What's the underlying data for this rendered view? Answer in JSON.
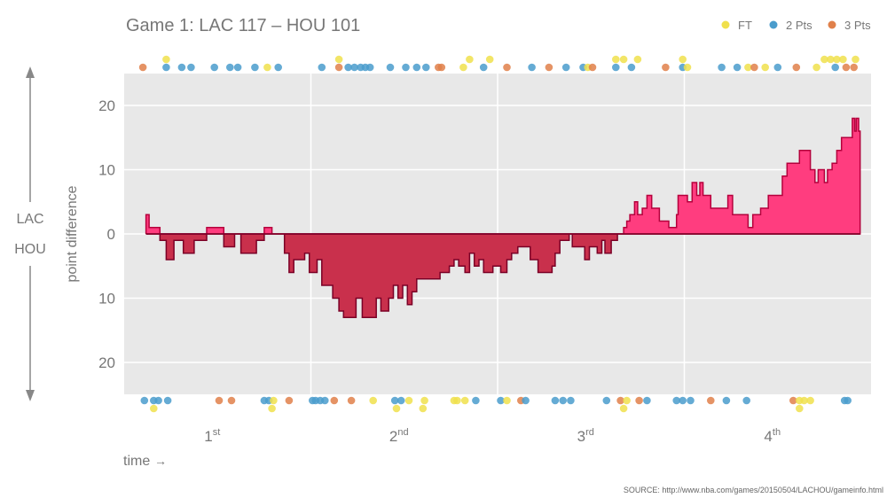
{
  "title": "Game 1: LAC 117  –  HOU 101",
  "source": "SOURCE: http://www.nba.com/games/20150504/LACHOU/gameinfo.html",
  "colors": {
    "lac_fill": "#ff3d7f",
    "lac_line": "#b5003c",
    "hou_fill": "#c9304c",
    "hou_line": "#7a0026",
    "ft": "#f0e04c",
    "two": "#4a9ccc",
    "three": "#e0804a",
    "plot_bg": "#e8e8e8",
    "text": "#777777"
  },
  "chart_data": {
    "type": "area",
    "title": "Game 1: LAC 117  –  HOU 101",
    "xlabel": "time",
    "ylabel": "point difference",
    "xlim": [
      0,
      48
    ],
    "ylim": [
      -25,
      25
    ],
    "yticks": [
      20,
      10,
      0,
      10,
      20
    ],
    "ytick_values": [
      20,
      10,
      0,
      -10,
      -20
    ],
    "team_labels": {
      "top": "LAC",
      "bottom": "HOU"
    },
    "quarters": [
      {
        "num": "1",
        "sup": "st",
        "center": 6
      },
      {
        "num": "2",
        "sup": "nd",
        "center": 18
      },
      {
        "num": "3",
        "sup": "rd",
        "center": 30
      },
      {
        "num": "4",
        "sup": "th",
        "center": 42
      }
    ],
    "legend": [
      {
        "key": "ft",
        "label": "FT"
      },
      {
        "key": "two",
        "label": "2 Pts"
      },
      {
        "key": "three",
        "label": "3 Pts"
      }
    ],
    "score_diff": [
      [
        1.4,
        0
      ],
      [
        1.4,
        3
      ],
      [
        1.6,
        3
      ],
      [
        1.6,
        1
      ],
      [
        2.3,
        1
      ],
      [
        2.3,
        -1
      ],
      [
        2.7,
        -1
      ],
      [
        2.7,
        -4
      ],
      [
        3.2,
        -4
      ],
      [
        3.2,
        -1
      ],
      [
        3.8,
        -1
      ],
      [
        3.8,
        -3
      ],
      [
        4.5,
        -3
      ],
      [
        4.5,
        -1
      ],
      [
        5.3,
        -1
      ],
      [
        5.3,
        1
      ],
      [
        6.4,
        1
      ],
      [
        6.4,
        -2
      ],
      [
        7.1,
        -2
      ],
      [
        7.1,
        0
      ],
      [
        7.5,
        0
      ],
      [
        7.5,
        -3
      ],
      [
        8.5,
        -3
      ],
      [
        8.5,
        -1
      ],
      [
        9,
        -1
      ],
      [
        9,
        1
      ],
      [
        9.5,
        1
      ],
      [
        9.5,
        0
      ],
      [
        10.3,
        0
      ],
      [
        10.3,
        -3
      ],
      [
        10.6,
        -3
      ],
      [
        10.6,
        -6
      ],
      [
        10.9,
        -6
      ],
      [
        10.9,
        -4
      ],
      [
        11.6,
        -4
      ],
      [
        11.6,
        -3
      ],
      [
        11.9,
        -3
      ],
      [
        11.9,
        -6
      ],
      [
        12.4,
        -6
      ],
      [
        12.4,
        -4
      ],
      [
        12.7,
        -4
      ],
      [
        12.7,
        -8
      ],
      [
        13.4,
        -8
      ],
      [
        13.4,
        -10
      ],
      [
        13.8,
        -10
      ],
      [
        13.8,
        -12
      ],
      [
        14.1,
        -12
      ],
      [
        14.1,
        -13
      ],
      [
        14.9,
        -13
      ],
      [
        14.9,
        -10
      ],
      [
        15.3,
        -10
      ],
      [
        15.3,
        -13
      ],
      [
        16.2,
        -13
      ],
      [
        16.2,
        -10
      ],
      [
        16.5,
        -10
      ],
      [
        16.5,
        -12
      ],
      [
        17,
        -12
      ],
      [
        17,
        -10
      ],
      [
        17.3,
        -10
      ],
      [
        17.3,
        -8
      ],
      [
        17.6,
        -8
      ],
      [
        17.6,
        -10
      ],
      [
        17.9,
        -10
      ],
      [
        17.9,
        -8
      ],
      [
        18.2,
        -8
      ],
      [
        18.2,
        -11
      ],
      [
        18.5,
        -11
      ],
      [
        18.5,
        -9
      ],
      [
        18.8,
        -9
      ],
      [
        18.8,
        -7
      ],
      [
        20.3,
        -7
      ],
      [
        20.3,
        -6
      ],
      [
        20.9,
        -6
      ],
      [
        20.9,
        -5
      ],
      [
        21.2,
        -5
      ],
      [
        21.2,
        -4
      ],
      [
        21.5,
        -4
      ],
      [
        21.5,
        -5
      ],
      [
        21.9,
        -5
      ],
      [
        21.9,
        -6
      ],
      [
        22.2,
        -6
      ],
      [
        22.2,
        -3
      ],
      [
        22.5,
        -3
      ],
      [
        22.5,
        -5
      ],
      [
        22.8,
        -5
      ],
      [
        22.8,
        -4
      ],
      [
        23.1,
        -4
      ],
      [
        23.1,
        -6
      ],
      [
        23.7,
        -6
      ],
      [
        23.7,
        -5
      ],
      [
        24.2,
        -5
      ],
      [
        24.2,
        -6
      ],
      [
        24.6,
        -6
      ],
      [
        24.6,
        -4
      ],
      [
        24.9,
        -4
      ],
      [
        24.9,
        -3
      ],
      [
        25.3,
        -3
      ],
      [
        25.3,
        -2
      ],
      [
        26.1,
        -2
      ],
      [
        26.1,
        -4
      ],
      [
        26.6,
        -4
      ],
      [
        26.6,
        -6
      ],
      [
        27.5,
        -6
      ],
      [
        27.5,
        -5
      ],
      [
        27.7,
        -5
      ],
      [
        27.7,
        -3
      ],
      [
        28,
        -3
      ],
      [
        28,
        -1
      ],
      [
        28.6,
        -1
      ],
      [
        28.6,
        0
      ],
      [
        28.8,
        0
      ],
      [
        28.8,
        -2
      ],
      [
        29.6,
        -2
      ],
      [
        29.6,
        -4
      ],
      [
        29.9,
        -4
      ],
      [
        29.9,
        -2
      ],
      [
        30.4,
        -2
      ],
      [
        30.4,
        -3
      ],
      [
        30.7,
        -3
      ],
      [
        30.7,
        -1
      ],
      [
        30.9,
        -1
      ],
      [
        30.9,
        -3
      ],
      [
        31.3,
        -3
      ],
      [
        31.3,
        -1
      ],
      [
        31.7,
        -1
      ],
      [
        31.7,
        0
      ],
      [
        32.1,
        0
      ],
      [
        32.1,
        1
      ],
      [
        32.3,
        1
      ],
      [
        32.3,
        2
      ],
      [
        32.5,
        2
      ],
      [
        32.5,
        3
      ],
      [
        32.8,
        3
      ],
      [
        32.8,
        5
      ],
      [
        33,
        5
      ],
      [
        33,
        3
      ],
      [
        33.3,
        3
      ],
      [
        33.3,
        4
      ],
      [
        33.6,
        4
      ],
      [
        33.6,
        6
      ],
      [
        33.9,
        6
      ],
      [
        33.9,
        4
      ],
      [
        34.4,
        4
      ],
      [
        34.4,
        2
      ],
      [
        35,
        2
      ],
      [
        35,
        1
      ],
      [
        35.5,
        1
      ],
      [
        35.5,
        3
      ],
      [
        35.6,
        3
      ],
      [
        35.6,
        6
      ],
      [
        36.2,
        6
      ],
      [
        36.2,
        5
      ],
      [
        36.5,
        5
      ],
      [
        36.5,
        8
      ],
      [
        36.8,
        8
      ],
      [
        36.8,
        6
      ],
      [
        37,
        6
      ],
      [
        37,
        8
      ],
      [
        37.2,
        8
      ],
      [
        37.2,
        6
      ],
      [
        37.7,
        6
      ],
      [
        37.7,
        4
      ],
      [
        38.8,
        4
      ],
      [
        38.8,
        6
      ],
      [
        39.1,
        6
      ],
      [
        39.1,
        3
      ],
      [
        40.1,
        3
      ],
      [
        40.1,
        1
      ],
      [
        40.4,
        1
      ],
      [
        40.4,
        3
      ],
      [
        40.9,
        3
      ],
      [
        40.9,
        4
      ],
      [
        41.4,
        4
      ],
      [
        41.4,
        6
      ],
      [
        42.3,
        6
      ],
      [
        42.3,
        9
      ],
      [
        42.6,
        9
      ],
      [
        42.6,
        11
      ],
      [
        43.4,
        11
      ],
      [
        43.4,
        13
      ],
      [
        44.1,
        13
      ],
      [
        44.1,
        10
      ],
      [
        44.4,
        10
      ],
      [
        44.4,
        8
      ],
      [
        44.6,
        8
      ],
      [
        44.6,
        10
      ],
      [
        45,
        10
      ],
      [
        45,
        8
      ],
      [
        45.2,
        8
      ],
      [
        45.2,
        10
      ],
      [
        45.5,
        10
      ],
      [
        45.5,
        11
      ],
      [
        45.8,
        11
      ],
      [
        45.8,
        13
      ],
      [
        46.1,
        13
      ],
      [
        46.1,
        15
      ],
      [
        46.8,
        15
      ],
      [
        46.8,
        18
      ],
      [
        46.95,
        18
      ],
      [
        46.95,
        16
      ],
      [
        47.05,
        16
      ],
      [
        47.05,
        18
      ],
      [
        47.2,
        18
      ],
      [
        47.2,
        16
      ],
      [
        47.3,
        16
      ]
    ],
    "top_shots": [
      [
        1.2,
        "three"
      ],
      [
        2.7,
        "two"
      ],
      [
        3.7,
        "two"
      ],
      [
        4.3,
        "two"
      ],
      [
        5.8,
        "two"
      ],
      [
        6.8,
        "two"
      ],
      [
        7.3,
        "two"
      ],
      [
        8.4,
        "two"
      ],
      [
        9.2,
        "ft"
      ],
      [
        9.9,
        "two"
      ],
      [
        12.7,
        "two"
      ],
      [
        13.8,
        "three"
      ],
      [
        14.4,
        "two"
      ],
      [
        14.8,
        "two"
      ],
      [
        15.2,
        "two"
      ],
      [
        15.5,
        "two"
      ],
      [
        15.8,
        "two"
      ],
      [
        17.1,
        "two"
      ],
      [
        18.1,
        "two"
      ],
      [
        18.8,
        "two"
      ],
      [
        19.4,
        "two"
      ],
      [
        20.2,
        "three"
      ],
      [
        20.4,
        "three"
      ],
      [
        21.8,
        "ft"
      ],
      [
        23.1,
        "two"
      ],
      [
        24.6,
        "three"
      ],
      [
        26.2,
        "two"
      ],
      [
        27.3,
        "three"
      ],
      [
        28.4,
        "two"
      ],
      [
        29.5,
        "two"
      ],
      [
        29.8,
        "ft"
      ],
      [
        30.1,
        "three"
      ],
      [
        31.6,
        "two"
      ],
      [
        32.6,
        "two"
      ],
      [
        34.8,
        "three"
      ],
      [
        35.9,
        "two"
      ],
      [
        36.2,
        "ft"
      ],
      [
        38.4,
        "two"
      ],
      [
        39.4,
        "two"
      ],
      [
        40.1,
        "ft"
      ],
      [
        40.5,
        "three"
      ],
      [
        41.2,
        "ft"
      ],
      [
        42,
        "two"
      ],
      [
        43.2,
        "three"
      ],
      [
        44.5,
        "ft"
      ],
      [
        45.7,
        "two"
      ],
      [
        46.4,
        "three"
      ],
      [
        46.9,
        "three"
      ]
    ],
    "top_ft_extra": [
      [
        2.7
      ],
      [
        13.8
      ],
      [
        22.2
      ],
      [
        23.5
      ],
      [
        31.6
      ],
      [
        32.1
      ],
      [
        33
      ],
      [
        35.9
      ],
      [
        45
      ],
      [
        45.4
      ],
      [
        45.8
      ],
      [
        46.2
      ],
      [
        47
      ]
    ],
    "bottom_shots": [
      [
        1.3,
        "two"
      ],
      [
        1.9,
        "two"
      ],
      [
        2.2,
        "two"
      ],
      [
        2.8,
        "two"
      ],
      [
        6.1,
        "three"
      ],
      [
        6.9,
        "three"
      ],
      [
        9,
        "two"
      ],
      [
        9.3,
        "two"
      ],
      [
        9.6,
        "ft"
      ],
      [
        10.6,
        "three"
      ],
      [
        12.1,
        "two"
      ],
      [
        12.3,
        "two"
      ],
      [
        12.6,
        "two"
      ],
      [
        12.9,
        "two"
      ],
      [
        13.5,
        "three"
      ],
      [
        14.6,
        "three"
      ],
      [
        16,
        "ft"
      ],
      [
        17.4,
        "two"
      ],
      [
        17.8,
        "two"
      ],
      [
        18.3,
        "ft"
      ],
      [
        19.3,
        "ft"
      ],
      [
        21.2,
        "ft"
      ],
      [
        21.4,
        "ft"
      ],
      [
        21.9,
        "ft"
      ],
      [
        22.6,
        "two"
      ],
      [
        24.2,
        "two"
      ],
      [
        24.6,
        "ft"
      ],
      [
        25.5,
        "three"
      ],
      [
        25.8,
        "two"
      ],
      [
        27.7,
        "two"
      ],
      [
        28.2,
        "two"
      ],
      [
        28.7,
        "two"
      ],
      [
        31,
        "two"
      ],
      [
        31.9,
        "three"
      ],
      [
        32.3,
        "ft"
      ],
      [
        33.1,
        "three"
      ],
      [
        33.6,
        "two"
      ],
      [
        35.5,
        "two"
      ],
      [
        35.9,
        "two"
      ],
      [
        36.4,
        "two"
      ],
      [
        37.7,
        "three"
      ],
      [
        38.7,
        "two"
      ],
      [
        40,
        "two"
      ],
      [
        43,
        "three"
      ],
      [
        43.4,
        "ft"
      ],
      [
        43.7,
        "ft"
      ],
      [
        44.1,
        "ft"
      ],
      [
        46.3,
        "two"
      ],
      [
        46.5,
        "two"
      ]
    ],
    "bottom_ft_extra": [
      [
        1.9
      ],
      [
        9.5
      ],
      [
        17.5
      ],
      [
        19.2
      ],
      [
        32.1
      ],
      [
        43.4
      ]
    ]
  }
}
